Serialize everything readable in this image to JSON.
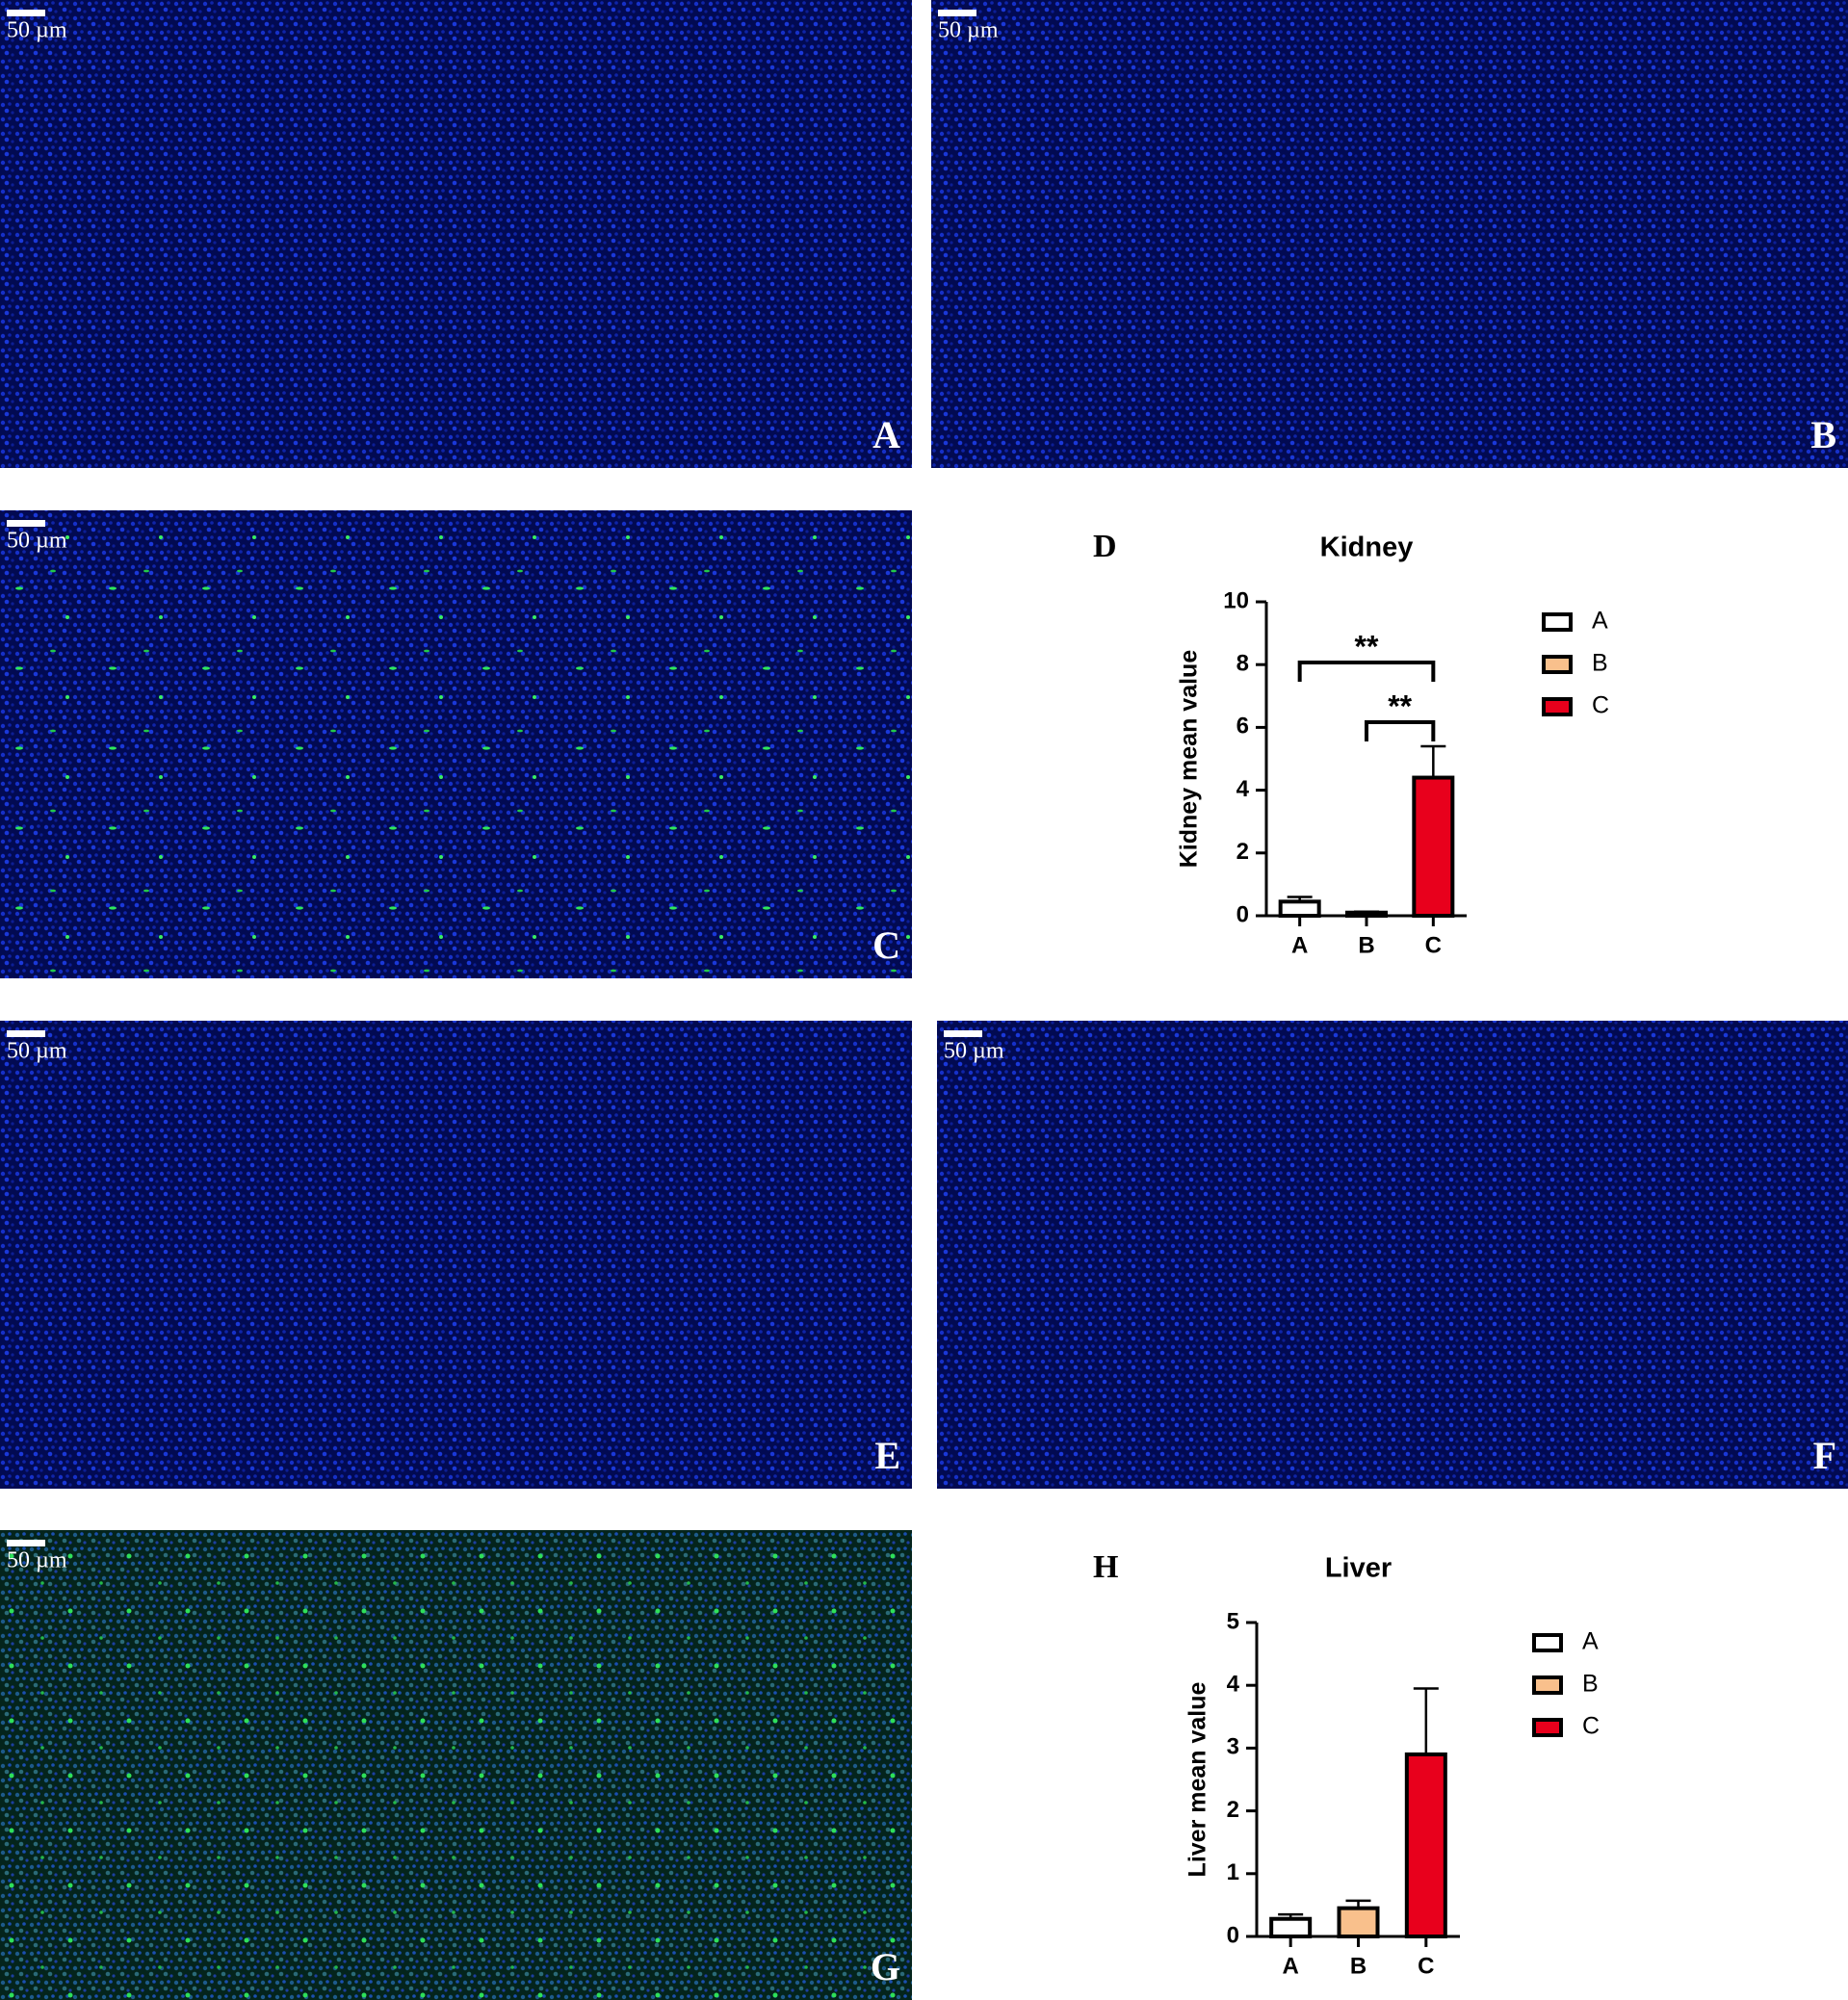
{
  "panels": [
    {
      "letter": "A",
      "scale": "50 µm"
    },
    {
      "letter": "B",
      "scale": "50 µm"
    },
    {
      "letter": "C",
      "scale": "50 µm"
    },
    {
      "letter": "E",
      "scale": "50 µm"
    },
    {
      "letter": "F",
      "scale": "50 µm"
    },
    {
      "letter": "G",
      "scale": "50 µm"
    }
  ],
  "chart_data": [
    {
      "type": "bar",
      "panel": "D",
      "title": "Kidney",
      "y_label": "Kidney mean value",
      "categories": [
        "A",
        "B",
        "C"
      ],
      "values": [
        0.45,
        0.1,
        4.4
      ],
      "errors": [
        0.15,
        0.03,
        1.0
      ],
      "colors": [
        "#ffffff",
        "#f9c08c",
        "#e8001c"
      ],
      "ylim": [
        0,
        10
      ],
      "yticks": [
        0,
        2,
        4,
        6,
        8,
        10
      ],
      "significance": [
        {
          "between": [
            "B",
            "C"
          ],
          "label": "**"
        },
        {
          "between": [
            "A",
            "C"
          ],
          "label": "**"
        }
      ],
      "legend": "right"
    },
    {
      "type": "bar",
      "panel": "H",
      "title": "Liver",
      "y_label": "Liver mean value",
      "categories": [
        "A",
        "B",
        "C"
      ],
      "values": [
        0.28,
        0.45,
        2.9
      ],
      "errors": [
        0.07,
        0.12,
        1.05
      ],
      "colors": [
        "#ffffff",
        "#f9c08c",
        "#e8001c"
      ],
      "ylim": [
        0,
        5
      ],
      "yticks": [
        0,
        1,
        2,
        3,
        4,
        5
      ],
      "legend": "right"
    }
  ]
}
